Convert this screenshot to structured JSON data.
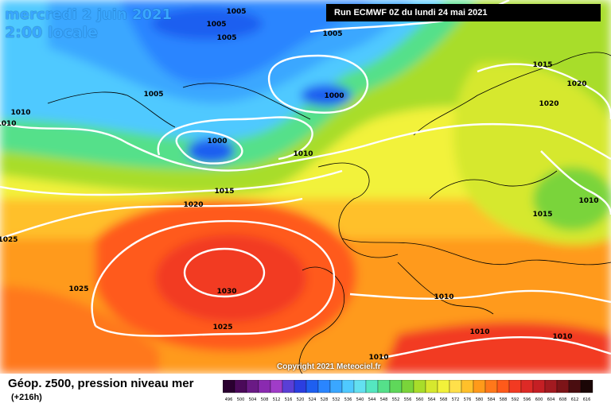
{
  "header": {
    "date_label": "mercredi 2 juin 2021",
    "time_label": "2:00 locale",
    "run_label": "Run ECMWF 0Z du lundi 24 mai 2021"
  },
  "footer": {
    "caption": "Géop. z500, pression niveau mer",
    "horizon": "(+216h)",
    "copyright": "Copyright 2021 Meteociel.fr"
  },
  "isobar_labels": [
    {
      "text": "1005"
    },
    {
      "text": "1005"
    },
    {
      "text": "1005"
    },
    {
      "text": "1005"
    },
    {
      "text": "1005"
    },
    {
      "text": "1000"
    },
    {
      "text": "1000"
    },
    {
      "text": "1010"
    },
    {
      "text": "1010"
    },
    {
      "text": "1015"
    },
    {
      "text": "1020"
    },
    {
      "text": "1025"
    },
    {
      "text": "1025"
    },
    {
      "text": "1030"
    },
    {
      "text": "1025"
    },
    {
      "text": "1015"
    },
    {
      "text": "1020"
    },
    {
      "text": "1020"
    },
    {
      "text": "1015"
    },
    {
      "text": "1010"
    },
    {
      "text": "1010"
    },
    {
      "text": "1010"
    },
    {
      "text": "1010"
    },
    {
      "text": "1010"
    },
    {
      "text": "1010"
    }
  ],
  "legend": {
    "values": [
      "496",
      "500",
      "504",
      "508",
      "512",
      "516",
      "520",
      "524",
      "528",
      "532",
      "536",
      "540",
      "544",
      "548",
      "552",
      "556",
      "560",
      "564",
      "568",
      "572",
      "576",
      "580",
      "584",
      "588",
      "592",
      "596",
      "600",
      "604",
      "608",
      "612",
      "616"
    ],
    "colors": [
      "#2a0030",
      "#4b0a5a",
      "#6a1a85",
      "#8a2ab0",
      "#a03cc8",
      "#5a3fd6",
      "#2b3ee0",
      "#1e5ff0",
      "#2a85ff",
      "#3aa7ff",
      "#4fc9ff",
      "#63e0f0",
      "#55e6c0",
      "#55e08a",
      "#5fd85a",
      "#7ad43a",
      "#a8dd2a",
      "#d6e82e",
      "#f2f23a",
      "#ffe04a",
      "#ffc02a",
      "#ff9a1a",
      "#ff781a",
      "#ff5a1a",
      "#f23a22",
      "#dd2a26",
      "#c51f24",
      "#a31a20",
      "#7d1418",
      "#4a0d10",
      "#1a0606"
    ],
    "units_note": ""
  },
  "colors": {
    "isobar": "#ffffff",
    "title": "#3aa7ff"
  }
}
